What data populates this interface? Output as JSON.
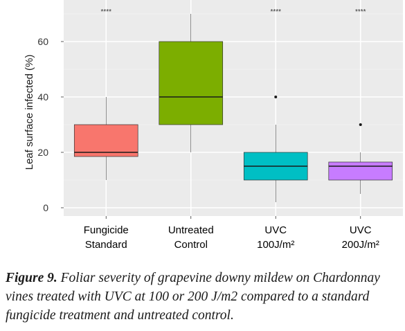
{
  "chart_data": {
    "type": "box",
    "title": "",
    "xlabel": "",
    "ylabel": "Leaf surface infected (%)",
    "ylim": [
      -3,
      75
    ],
    "yticks": [
      0,
      20,
      40,
      60
    ],
    "grid": true,
    "legend": "none",
    "categories": [
      [
        "Fungicide",
        "Standard"
      ],
      [
        "Untreated",
        "Control"
      ],
      [
        "UVC",
        "100J/m²"
      ],
      [
        "UVC",
        "200J/m²"
      ]
    ],
    "boxes": [
      {
        "min": 10,
        "q1": 18.5,
        "median": 20,
        "q3": 30,
        "max": 40,
        "outliers": [],
        "color": "#F8766D",
        "significance": "****"
      },
      {
        "min": 20,
        "q1": 30,
        "median": 40,
        "q3": 60,
        "max": 70,
        "outliers": [],
        "color": "#7CAE00",
        "significance": ""
      },
      {
        "min": 2,
        "q1": 10,
        "median": 15,
        "q3": 20,
        "max": 30,
        "outliers": [
          40
        ],
        "color": "#00BFC4",
        "significance": "****"
      },
      {
        "min": 5,
        "q1": 10,
        "median": 15,
        "q3": 16.5,
        "max": 20,
        "outliers": [
          30
        ],
        "color": "#C77CFF",
        "significance": "****"
      }
    ]
  },
  "caption": {
    "figure_number": "Figure 9.",
    "text": "Foliar severity of grapevine downy mildew on Chardonnay vines treated with UVC at 100 or 200 J/m2 compared to a standard fungicide treatment and untreated control."
  }
}
